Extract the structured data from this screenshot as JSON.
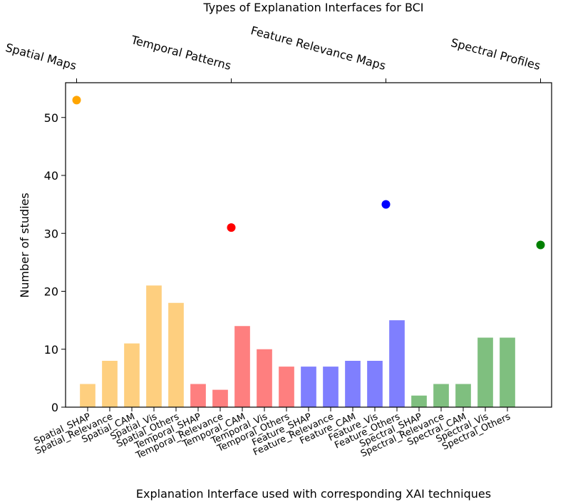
{
  "chart_data": {
    "type": "bar",
    "title": "Types of Explanation Interfaces for BCI",
    "xlabel": "Explanation Interface used with corresponding XAI techniques",
    "ylabel": "Number of studies",
    "ylim": [
      0,
      56
    ],
    "yticks": [
      0,
      10,
      20,
      30,
      40,
      50
    ],
    "grid": false,
    "categories": [
      "Spatial_SHAP",
      "Spatial_Relevance",
      "Spatial_CAM",
      "Spatial_Vis",
      "Spatial_Others",
      "Temporal_SHAP",
      "Temporal_Relevance",
      "Temporal_CAM",
      "Temporal_Vis",
      "Temporal_Others",
      "Feature_SHAP",
      "Feature_Relevance",
      "Feature_CAM",
      "Feature_Vis",
      "Feature_Others",
      "Spectral_SHAP",
      "Spectral_Relevance",
      "Spectral_CAM",
      "Spectral_Vis",
      "Spectral_Others"
    ],
    "values": [
      4,
      8,
      11,
      21,
      18,
      4,
      3,
      14,
      10,
      7,
      7,
      7,
      8,
      8,
      15,
      2,
      4,
      4,
      12,
      12
    ],
    "bar_colors": [
      "#fecf7f",
      "#fecf7f",
      "#fecf7f",
      "#fecf7f",
      "#fecf7f",
      "#fe7f7f",
      "#fe7f7f",
      "#fe7f7f",
      "#fe7f7f",
      "#fe7f7f",
      "#7f7ffe",
      "#7f7ffe",
      "#7f7ffe",
      "#7f7ffe",
      "#7f7ffe",
      "#7fbf7f",
      "#7fbf7f",
      "#7fbf7f",
      "#7fbf7f",
      "#7fbf7f"
    ],
    "interface_totals": [
      {
        "name": "Spatial Maps",
        "x": -0.5,
        "value": 53,
        "color": "#ffa500"
      },
      {
        "name": "Temporal Patterns",
        "x": 6.5,
        "value": 31,
        "color": "#ff0000"
      },
      {
        "name": "Feature Relevance Maps",
        "x": 13.5,
        "value": 35,
        "color": "#0000ff"
      },
      {
        "name": "Spectral Profiles",
        "x": 20.5,
        "value": 28,
        "color": "#008000"
      }
    ]
  }
}
